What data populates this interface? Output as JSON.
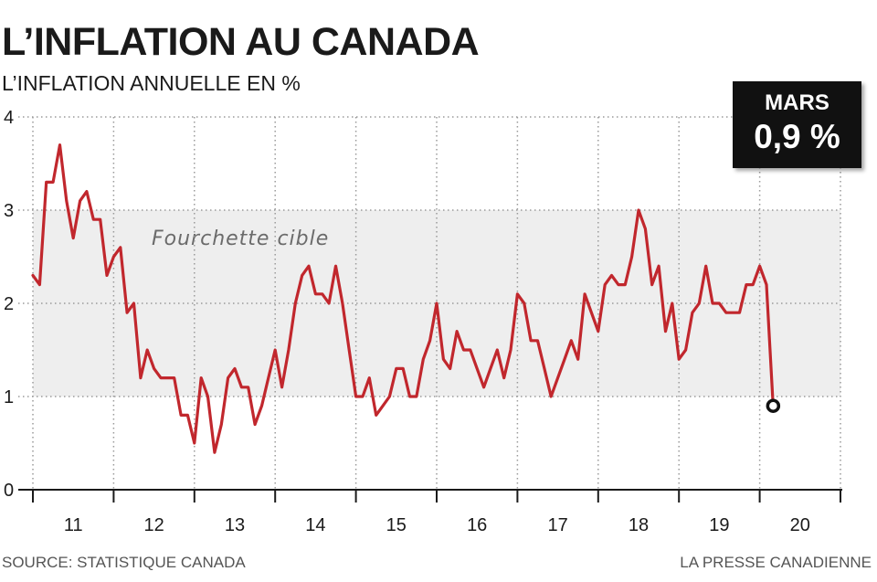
{
  "header": {
    "title": "L’INFLATION AU CANADA",
    "subtitle": "L’INFLATION ANNUELLE EN %"
  },
  "callout": {
    "month": "MARS",
    "value": "0,9 %"
  },
  "footer": {
    "source": "SOURCE: STATISTIQUE CANADA",
    "credit": "LA PRESSE CANADIENNE"
  },
  "colors": {
    "line": "#c1272d",
    "band": "#eeeeee",
    "grid": "#9a9a9a",
    "axis": "#1a1a1a"
  },
  "chart_data": {
    "type": "line",
    "title": "L’INFLATION AU CANADA",
    "subtitle": "L’INFLATION ANNUELLE EN %",
    "ylim": [
      0,
      4
    ],
    "yticks": [
      "0",
      "1",
      "2",
      "3",
      "4"
    ],
    "xlim": [
      2011.0,
      2021.0
    ],
    "xticks": [
      {
        "label": "11",
        "year": 2011
      },
      {
        "label": "12",
        "year": 2012
      },
      {
        "label": "13",
        "year": 2013
      },
      {
        "label": "14",
        "year": 2014
      },
      {
        "label": "15",
        "year": 2015
      },
      {
        "label": "16",
        "year": 2016
      },
      {
        "label": "17",
        "year": 2017
      },
      {
        "label": "18",
        "year": 2018
      },
      {
        "label": "19",
        "year": 2019
      },
      {
        "label": "20",
        "year": 2020
      }
    ],
    "grid": "horizontal dotted",
    "target_band": {
      "label": "Fourchette cible",
      "low": 1,
      "high": 3
    },
    "series": [
      {
        "start": "2011-01",
        "frequency": "monthly",
        "values": [
          2.3,
          2.2,
          3.3,
          3.3,
          3.7,
          3.1,
          2.7,
          3.1,
          3.2,
          2.9,
          2.9,
          2.3,
          2.5,
          2.6,
          1.9,
          2.0,
          1.2,
          1.5,
          1.3,
          1.2,
          1.2,
          1.2,
          0.8,
          0.8,
          0.5,
          1.2,
          1.0,
          0.4,
          0.7,
          1.2,
          1.3,
          1.1,
          1.1,
          0.7,
          0.9,
          1.2,
          1.5,
          1.1,
          1.5,
          2.0,
          2.3,
          2.4,
          2.1,
          2.1,
          2.0,
          2.4,
          2.0,
          1.5,
          1.0,
          1.0,
          1.2,
          0.8,
          0.9,
          1.0,
          1.3,
          1.3,
          1.0,
          1.0,
          1.4,
          1.6,
          2.0,
          1.4,
          1.3,
          1.7,
          1.5,
          1.5,
          1.3,
          1.1,
          1.3,
          1.5,
          1.2,
          1.5,
          2.1,
          2.0,
          1.6,
          1.6,
          1.3,
          1.0,
          1.2,
          1.4,
          1.6,
          1.4,
          2.1,
          1.9,
          1.7,
          2.2,
          2.3,
          2.2,
          2.2,
          2.5,
          3.0,
          2.8,
          2.2,
          2.4,
          1.7,
          2.0,
          1.4,
          1.5,
          1.9,
          2.0,
          2.4,
          2.0,
          2.0,
          1.9,
          1.9,
          1.9,
          2.2,
          2.2,
          2.4,
          2.2,
          0.9
        ]
      }
    ],
    "last_point": {
      "label": "MARS",
      "value": 0.9
    }
  }
}
